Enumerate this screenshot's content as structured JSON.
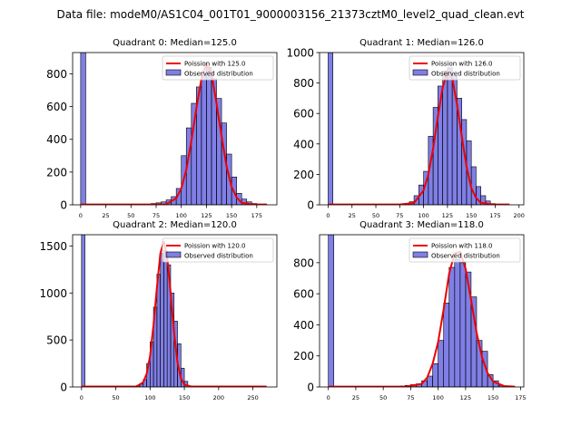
{
  "figure": {
    "suptitle": "Data file: modeM0/AS1C04_001T01_9000003156_21373cztM0_level2_quad_clean.evt"
  },
  "colors": {
    "bar_fill": "#0000cc",
    "bar_edge": "#000000",
    "fit_line": "#ee0000"
  },
  "chart_data": [
    {
      "type": "bar",
      "title": "Quadrant 0: Median=125.0",
      "xlim": [
        -8,
        195
      ],
      "ylim": [
        0,
        930
      ],
      "xticks": [
        0,
        25,
        50,
        75,
        100,
        125,
        150,
        175
      ],
      "yticks": [
        0,
        200,
        400,
        600,
        800
      ],
      "bin_width": 5,
      "series": [
        {
          "name": "Observed distribution",
          "kind": "histogram",
          "bin_starts": [
            0,
            70,
            75,
            80,
            85,
            90,
            95,
            100,
            105,
            110,
            115,
            120,
            125,
            130,
            135,
            140,
            145,
            150,
            155,
            160,
            165,
            170,
            175,
            180
          ],
          "counts": [
            930,
            8,
            12,
            18,
            30,
            50,
            100,
            300,
            470,
            620,
            720,
            790,
            840,
            770,
            650,
            500,
            310,
            170,
            70,
            35,
            18,
            8,
            4,
            2
          ]
        },
        {
          "name": "Poission with 125.0",
          "kind": "line",
          "points": [
            [
              0,
              2
            ],
            [
              70,
              2
            ],
            [
              85,
              3
            ],
            [
              95,
              40
            ],
            [
              100,
              100
            ],
            [
              105,
              215
            ],
            [
              110,
              390
            ],
            [
              115,
              590
            ],
            [
              120,
              770
            ],
            [
              125,
              860
            ],
            [
              130,
              800
            ],
            [
              135,
              620
            ],
            [
              140,
              420
            ],
            [
              145,
              235
            ],
            [
              150,
              110
            ],
            [
              155,
              45
            ],
            [
              160,
              12
            ],
            [
              170,
              3
            ],
            [
              185,
              2
            ]
          ]
        }
      ],
      "legend": {
        "position": "upper right",
        "entries": [
          "Poission with 125.0",
          "Observed distribution"
        ]
      }
    },
    {
      "type": "bar",
      "title": "Quadrant 1: Median=126.0",
      "xlim": [
        -9,
        205
      ],
      "ylim": [
        0,
        1000
      ],
      "xticks": [
        0,
        25,
        50,
        75,
        100,
        125,
        150,
        175,
        200
      ],
      "yticks": [
        0,
        200,
        400,
        600,
        800,
        1000
      ],
      "bin_width": 5,
      "series": [
        {
          "name": "Observed distribution",
          "kind": "histogram",
          "bin_starts": [
            0,
            80,
            85,
            90,
            95,
            100,
            105,
            110,
            115,
            120,
            125,
            130,
            135,
            140,
            145,
            150,
            155,
            160,
            165,
            170
          ],
          "counts": [
            1000,
            10,
            20,
            60,
            130,
            220,
            450,
            640,
            780,
            880,
            900,
            850,
            700,
            560,
            420,
            250,
            120,
            60,
            25,
            8
          ]
        },
        {
          "name": "Poission with 126.0",
          "kind": "line",
          "points": [
            [
              0,
              2
            ],
            [
              75,
              2
            ],
            [
              90,
              12
            ],
            [
              100,
              95
            ],
            [
              105,
              200
            ],
            [
              110,
              370
            ],
            [
              115,
              580
            ],
            [
              120,
              770
            ],
            [
              125,
              875
            ],
            [
              130,
              830
            ],
            [
              135,
              660
            ],
            [
              140,
              450
            ],
            [
              145,
              250
            ],
            [
              150,
              110
            ],
            [
              155,
              45
            ],
            [
              160,
              14
            ],
            [
              170,
              3
            ],
            [
              190,
              2
            ]
          ]
        }
      ],
      "legend": {
        "position": "upper right",
        "entries": [
          "Poission with 126.0",
          "Observed distribution"
        ]
      }
    },
    {
      "type": "bar",
      "title": "Quadrant 2: Median=120.0",
      "xlim": [
        -13,
        285
      ],
      "ylim": [
        0,
        1620
      ],
      "xticks": [
        0,
        50,
        100,
        150,
        200,
        250
      ],
      "yticks": [
        0,
        500,
        1000,
        1500
      ],
      "bin_width": 5,
      "series": [
        {
          "name": "Observed distribution",
          "kind": "histogram",
          "bin_starts": [
            0,
            80,
            85,
            90,
            95,
            100,
            105,
            110,
            115,
            120,
            125,
            130,
            135,
            140,
            145,
            150
          ],
          "counts": [
            1620,
            15,
            30,
            80,
            250,
            480,
            850,
            1200,
            1420,
            1450,
            1300,
            1000,
            700,
            460,
            200,
            60
          ]
        },
        {
          "name": "Poission with 120.0",
          "kind": "line",
          "points": [
            [
              0,
              5
            ],
            [
              80,
              5
            ],
            [
              90,
              50
            ],
            [
              95,
              140
            ],
            [
              100,
              330
            ],
            [
              105,
              660
            ],
            [
              110,
              1060
            ],
            [
              115,
              1420
            ],
            [
              120,
              1550
            ],
            [
              125,
              1380
            ],
            [
              130,
              1000
            ],
            [
              135,
              580
            ],
            [
              140,
              260
            ],
            [
              145,
              90
            ],
            [
              150,
              25
            ],
            [
              160,
              5
            ],
            [
              270,
              5
            ]
          ]
        }
      ],
      "legend": {
        "position": "upper right",
        "entries": [
          "Poission with 120.0",
          "Observed distribution"
        ]
      }
    },
    {
      "type": "bar",
      "title": "Quadrant 3: Median=118.0",
      "xlim": [
        -8,
        178
      ],
      "ylim": [
        0,
        980
      ],
      "xticks": [
        0,
        25,
        50,
        75,
        100,
        125,
        150,
        175
      ],
      "yticks": [
        0,
        200,
        400,
        600,
        800
      ],
      "bin_width": 5,
      "series": [
        {
          "name": "Observed distribution",
          "kind": "histogram",
          "bin_starts": [
            0,
            60,
            65,
            70,
            75,
            80,
            85,
            90,
            95,
            100,
            105,
            110,
            115,
            120,
            125,
            130,
            135,
            140,
            145,
            150,
            155
          ],
          "counts": [
            980,
            4,
            6,
            10,
            15,
            20,
            40,
            70,
            150,
            300,
            540,
            770,
            820,
            800,
            740,
            580,
            300,
            230,
            80,
            40,
            10
          ]
        },
        {
          "name": "Poission with 118.0",
          "kind": "line",
          "points": [
            [
              0,
              2
            ],
            [
              70,
              2
            ],
            [
              85,
              20
            ],
            [
              90,
              60
            ],
            [
              95,
              150
            ],
            [
              100,
              290
            ],
            [
              105,
              500
            ],
            [
              110,
              730
            ],
            [
              115,
              860
            ],
            [
              120,
              870
            ],
            [
              125,
              760
            ],
            [
              130,
              560
            ],
            [
              135,
              350
            ],
            [
              140,
              190
            ],
            [
              145,
              90
            ],
            [
              150,
              35
            ],
            [
              160,
              6
            ],
            [
              170,
              2
            ]
          ]
        }
      ],
      "legend": {
        "position": "upper right",
        "entries": [
          "Poission with 118.0",
          "Observed distribution"
        ]
      }
    }
  ]
}
